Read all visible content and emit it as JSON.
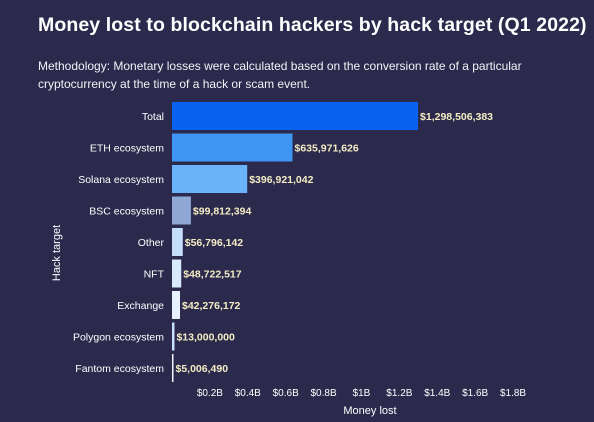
{
  "title": "Money lost to blockchain hackers by hack target (Q1 2022)",
  "subtitle": "Methodology: Monetary losses were calculated based on the conversion rate of a particular cryptocurrency at the time of a hack or scam event.",
  "colors": {
    "background": "#2b2a4d",
    "value_label": "#f4ecc4",
    "bar_scale": [
      "#0a63f0",
      "#3f95f3",
      "#6ab2f9",
      "#8fa8d6",
      "#c2defb",
      "#d7ebfd",
      "#e6f3fe",
      "#c9e3fa",
      "#f2f7fd"
    ]
  },
  "chart_data": {
    "type": "bar",
    "orientation": "horizontal",
    "title": "Money lost to blockchain hackers by hack target (Q1 2022)",
    "xlabel": "Money lost",
    "ylabel": "Hack target",
    "categories": [
      "Total",
      "ETH ecosystem",
      "Solana ecosystem",
      "BSC ecosystem",
      "Other",
      "NFT",
      "Exchange",
      "Polygon ecosystem",
      "Fantom ecosystem"
    ],
    "values": [
      1298506383,
      635971626,
      396921042,
      99812394,
      56796142,
      48722517,
      42276172,
      13000000,
      5006490
    ],
    "value_labels": [
      "$1,298,506,383",
      "$635,971,626",
      "$396,921,042",
      "$99,812,394",
      "$56,796,142",
      "$48,722,517",
      "$42,276,172",
      "$13,000,000",
      "$5,006,490"
    ],
    "xticks": [
      200000000,
      400000000,
      600000000,
      800000000,
      1000000000,
      1200000000,
      1400000000,
      1600000000,
      1800000000
    ],
    "xtick_labels": [
      "$0.2B",
      "$0.4B",
      "$0.6B",
      "$0.8B",
      "$1B",
      "$1.2B",
      "$1.4B",
      "$1.6B",
      "$1.8B"
    ],
    "xlim": [
      0,
      1900000000
    ],
    "grid": false,
    "legend": "none"
  }
}
